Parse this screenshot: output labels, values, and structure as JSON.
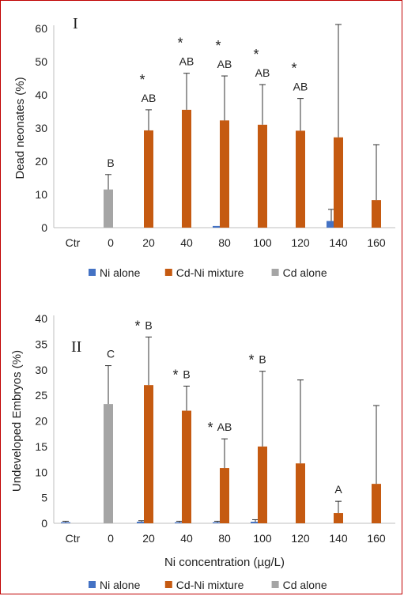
{
  "colors": {
    "ni_alone": "#4472c4",
    "cd_ni_mixture": "#c55a11",
    "cd_alone": "#a5a5a5",
    "frame": "#c00000"
  },
  "chart_data": [
    {
      "panel": "I",
      "type": "bar",
      "xlabel": "",
      "ylabel": "Dead neonates (%)",
      "ylim": [
        0,
        60
      ],
      "yticks": [
        0,
        10,
        20,
        30,
        40,
        50,
        60
      ],
      "categories": [
        "Ctr",
        "0",
        "20",
        "40",
        "80",
        "100",
        "120",
        "140",
        "160"
      ],
      "grid": false,
      "legend_position": "bottom",
      "series": [
        {
          "name": "Ni alone",
          "values": [
            0,
            0,
            0,
            0,
            0.5,
            0,
            0,
            2,
            0
          ],
          "errors": [
            0,
            0,
            0,
            0,
            0,
            0,
            0,
            3.5,
            0
          ]
        },
        {
          "name": "Cd-Ni mixture",
          "values": [
            0,
            0,
            29.3,
            35.5,
            32.3,
            31,
            29.2,
            27.2,
            8.3
          ],
          "errors": [
            0,
            0,
            6.2,
            11,
            13.4,
            12.1,
            9.7,
            34,
            16.7
          ]
        },
        {
          "name": "Cd alone",
          "values": [
            0,
            11.5,
            0,
            0,
            0,
            0,
            0,
            0,
            0
          ],
          "errors": [
            0,
            4.5,
            0,
            0,
            0,
            0,
            0,
            0,
            0
          ]
        }
      ],
      "annotations": [
        {
          "category": "0",
          "letters": "B",
          "star": false
        },
        {
          "category": "20",
          "letters": "AB",
          "star": true
        },
        {
          "category": "40",
          "letters": "AB",
          "star": true
        },
        {
          "category": "80",
          "letters": "AB",
          "star": true
        },
        {
          "category": "100",
          "letters": "AB",
          "star": true
        },
        {
          "category": "120",
          "letters": "AB",
          "star": true
        }
      ]
    },
    {
      "panel": "II",
      "type": "bar",
      "xlabel": "Ni concentration (µg/L)",
      "ylabel": "Undeveloped Embryos (%)",
      "ylim": [
        0,
        40
      ],
      "yticks": [
        0,
        5,
        10,
        15,
        20,
        25,
        30,
        35,
        40
      ],
      "categories": [
        "Ctr",
        "0",
        "20",
        "40",
        "80",
        "100",
        "120",
        "140",
        "160"
      ],
      "grid": false,
      "legend_position": "bottom",
      "series": [
        {
          "name": "Ni alone",
          "values": [
            0.2,
            0,
            0.3,
            0.2,
            0.2,
            0.3,
            0,
            0,
            0
          ],
          "errors": [
            0.2,
            0,
            0.2,
            0.2,
            0.2,
            0.4,
            0,
            0,
            0
          ]
        },
        {
          "name": "Cd-Ni mixture",
          "values": [
            0,
            0,
            27,
            22,
            10.8,
            15,
            11.7,
            2,
            7.7
          ],
          "errors": [
            0,
            0,
            9.4,
            4.8,
            5.7,
            14.7,
            16.3,
            2.3,
            15.3
          ]
        },
        {
          "name": "Cd alone",
          "values": [
            0,
            23.3,
            0,
            0,
            0,
            0,
            0,
            0,
            0
          ],
          "errors": [
            0,
            7.5,
            0,
            0,
            0,
            0,
            0,
            0,
            0
          ]
        }
      ],
      "annotations": [
        {
          "category": "0",
          "letters": "C",
          "star": false
        },
        {
          "category": "20",
          "letters": "B",
          "star": true
        },
        {
          "category": "40",
          "letters": "B",
          "star": true
        },
        {
          "category": "80",
          "letters": "AB",
          "star": true
        },
        {
          "category": "100",
          "letters": "B",
          "star": true
        },
        {
          "category": "140",
          "letters": "A",
          "star": false
        }
      ]
    }
  ]
}
